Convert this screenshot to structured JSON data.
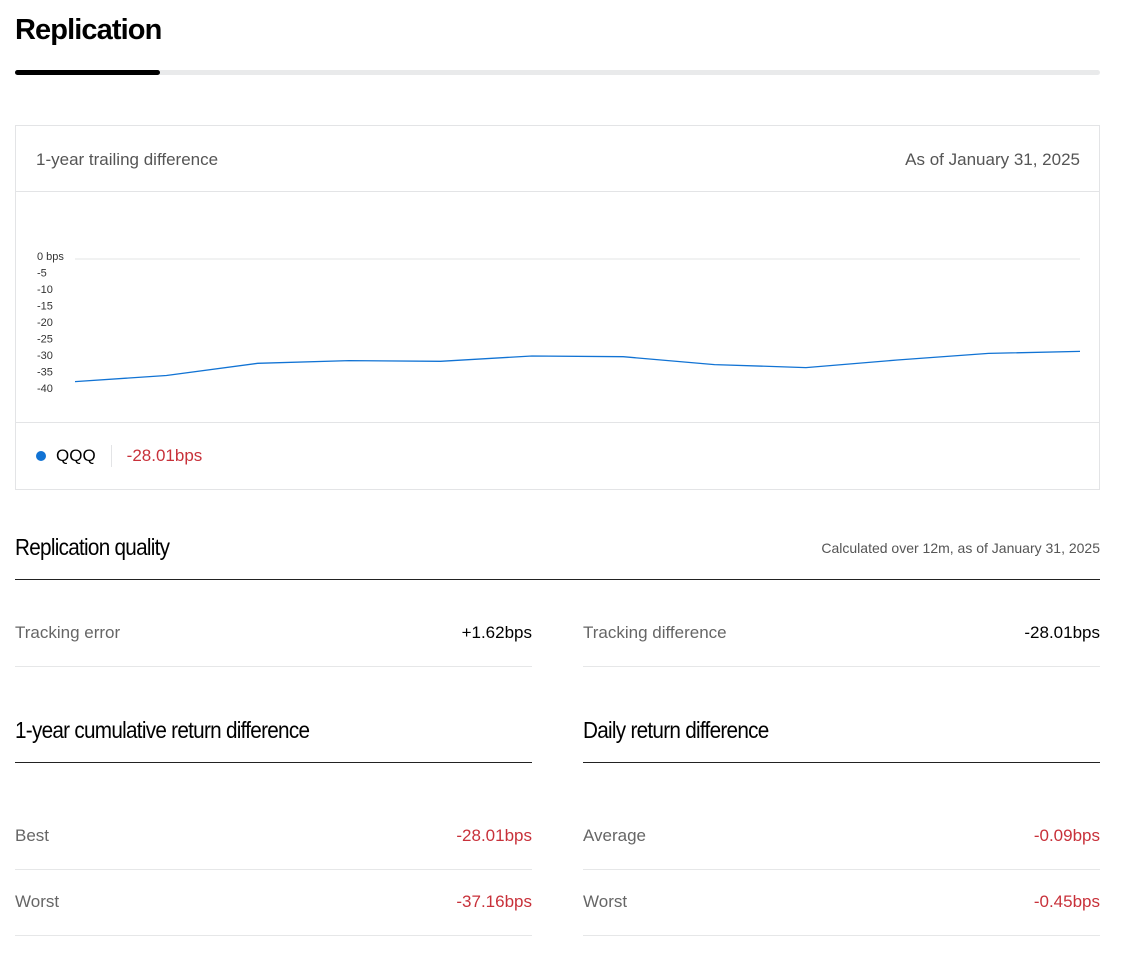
{
  "page": {
    "title": "Replication"
  },
  "trailing_card": {
    "title": "1-year trailing difference",
    "as_of": "As of January 31, 2025",
    "legend": {
      "name": "QQQ",
      "value": "-28.01bps"
    }
  },
  "chart_data": {
    "type": "line",
    "y_tick_labels": [
      "0 bps",
      "-5",
      "-10",
      "-15",
      "-20",
      "-25",
      "-30",
      "-35",
      "-40"
    ],
    "y_ticks": [
      0,
      -5,
      -10,
      -15,
      -20,
      -25,
      -30,
      -35,
      -40
    ],
    "ylim": [
      -40,
      0
    ],
    "grid": "baseline at 0 only",
    "series": [
      {
        "name": "QQQ",
        "color": "#1173d4",
        "values": [
          -37.16,
          -35.3,
          -31.6,
          -30.8,
          -31.0,
          -29.4,
          -29.6,
          -32.0,
          -32.9,
          -30.6,
          -28.6,
          -28.01
        ]
      }
    ]
  },
  "replication_quality": {
    "heading": "Replication quality",
    "note": "Calculated over 12m, as of January 31, 2025",
    "tracking_error": {
      "label": "Tracking error",
      "value": "+1.62bps"
    },
    "tracking_difference": {
      "label": "Tracking difference",
      "value": "-28.01bps"
    }
  },
  "cumulative": {
    "heading": "1-year cumulative return difference",
    "best": {
      "label": "Best",
      "value": "-28.01bps"
    },
    "worst": {
      "label": "Worst",
      "value": "-37.16bps"
    }
  },
  "daily": {
    "heading": "Daily return difference",
    "average": {
      "label": "Average",
      "value": "-0.09bps"
    },
    "worst": {
      "label": "Worst",
      "value": "-0.45bps"
    }
  },
  "colors": {
    "negative": "#c8313a",
    "series": "#1173d4",
    "tab_active": "#000000"
  }
}
